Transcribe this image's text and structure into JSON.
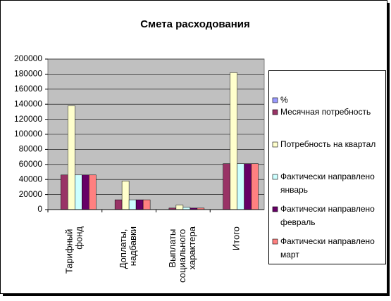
{
  "chart_data": {
    "type": "bar",
    "title": "Смета расходования",
    "categories": [
      "Тарифный фонд",
      "Доплаты, надбавки",
      "Выплаты социального характера",
      "Итого"
    ],
    "series": [
      {
        "name": "%",
        "color": "#9999ff",
        "values": [
          0,
          0,
          0,
          0
        ]
      },
      {
        "name": "Месячная потребность",
        "color": "#993366",
        "values": [
          46000,
          13000,
          2000,
          61000
        ]
      },
      {
        "name": "Потребность на квартал",
        "color": "#ffffcc",
        "values": [
          138000,
          38000,
          6000,
          182000
        ]
      },
      {
        "name": "Фактически направлено январь",
        "color": "#ccffff",
        "values": [
          46000,
          13000,
          3000,
          61000
        ]
      },
      {
        "name": "Фактически направлено февраль",
        "color": "#660066",
        "values": [
          46000,
          13000,
          2000,
          61000
        ]
      },
      {
        "name": "Фактически направлено март",
        "color": "#ff8080",
        "values": [
          46000,
          13000,
          2000,
          61000
        ]
      }
    ],
    "ylim": [
      0,
      200000
    ],
    "yticks": [
      0,
      20000,
      40000,
      60000,
      80000,
      100000,
      120000,
      140000,
      160000,
      180000,
      200000
    ],
    "grid": true,
    "legend": "right"
  }
}
